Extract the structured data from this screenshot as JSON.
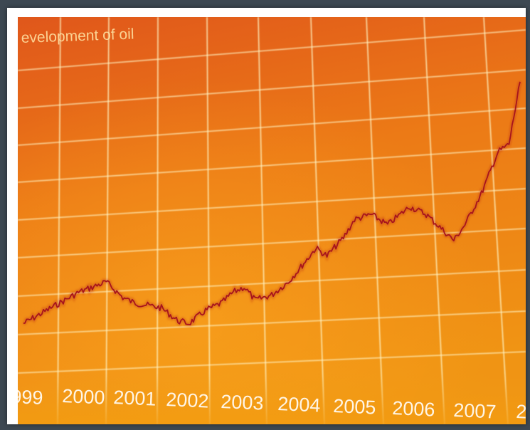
{
  "photo": {
    "caption_text": "evelopment of oil",
    "year_labels": [
      "999",
      "2000",
      "2001",
      "2002",
      "2003",
      "2004",
      "2005",
      "2006",
      "2007",
      "2"
    ],
    "colors": {
      "background_top": "#e0571b",
      "background_mid": "#ec7a16",
      "background_bottom": "#f09414",
      "grid": "#fff3c2",
      "price_line": "#a8141c",
      "label_text": "#fffaf0"
    }
  },
  "chart_data": {
    "type": "line",
    "title": "evelopment of oil",
    "xlabel": "",
    "ylabel": "",
    "x_tick_labels": [
      "999",
      "2000",
      "2001",
      "2002",
      "2003",
      "2004",
      "2005",
      "2006",
      "2007",
      "2"
    ],
    "x": [
      1999.0,
      1999.5,
      2000.0,
      2000.5,
      2000.8,
      2001.0,
      2001.5,
      2001.8,
      2002.0,
      2002.3,
      2002.6,
      2002.8,
      2003.0,
      2003.2,
      2003.5,
      2003.8,
      2004.0,
      2004.3,
      2004.5,
      2004.8,
      2005.0,
      2005.3,
      2005.6,
      2006.0,
      2006.3,
      2006.6,
      2006.8,
      2007.0,
      2007.3,
      2007.6,
      2007.8,
      2008.0
    ],
    "y": [
      0.04,
      0.1,
      0.16,
      0.2,
      0.14,
      0.12,
      0.1,
      0.05,
      0.04,
      0.09,
      0.12,
      0.16,
      0.18,
      0.13,
      0.15,
      0.2,
      0.25,
      0.33,
      0.3,
      0.37,
      0.44,
      0.46,
      0.42,
      0.49,
      0.46,
      0.4,
      0.36,
      0.42,
      0.54,
      0.7,
      0.73,
      0.97
    ],
    "grid": true
  }
}
